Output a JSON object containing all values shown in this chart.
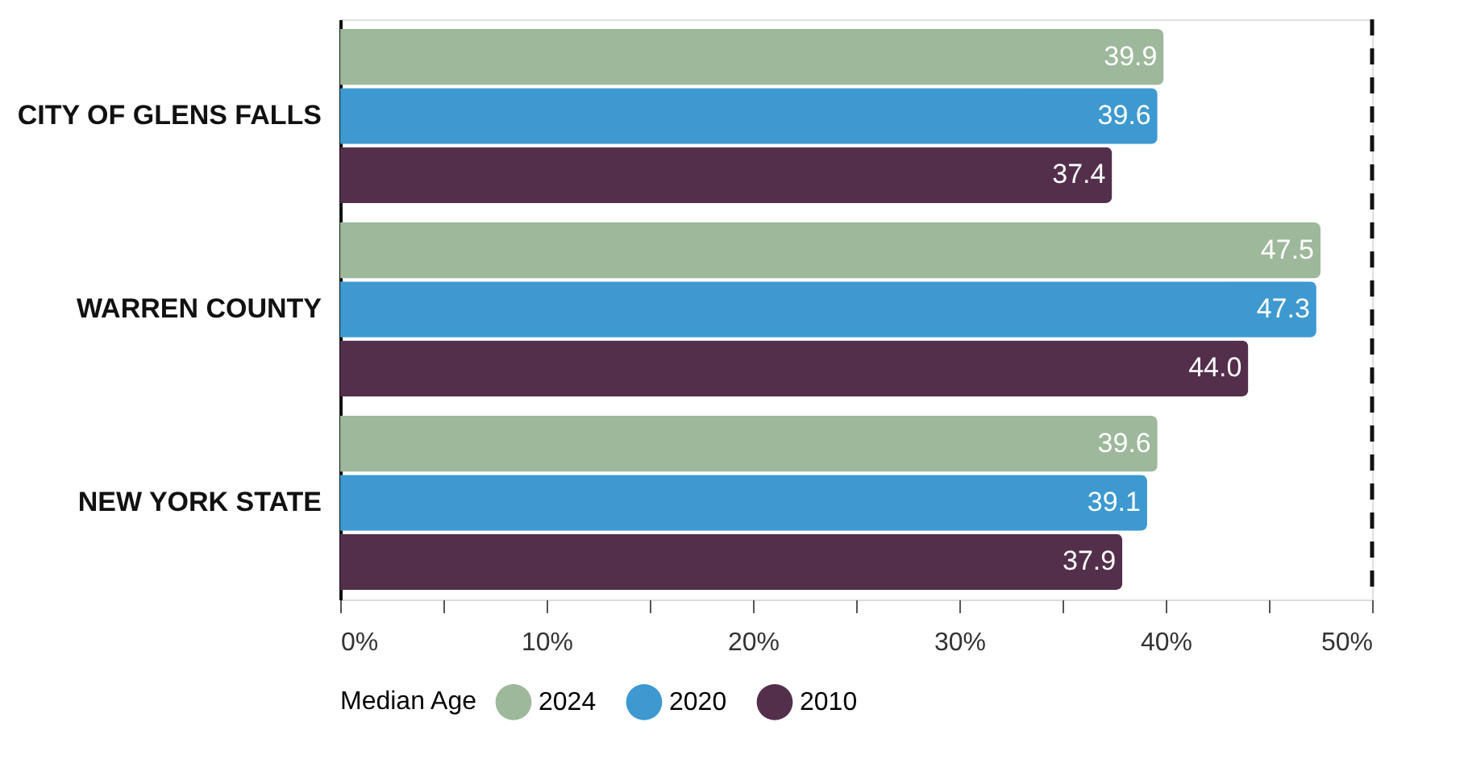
{
  "chart_data": {
    "type": "bar",
    "orientation": "horizontal",
    "categories": [
      "CITY OF GLENS FALLS",
      "WARREN COUNTY",
      "NEW YORK STATE"
    ],
    "series": [
      {
        "name": "2024",
        "color": "#9db89a",
        "values": [
          39.9,
          47.5,
          39.6
        ],
        "value_labels": [
          "39.9",
          "47.5",
          "39.6"
        ]
      },
      {
        "name": "2020",
        "color": "#3d99d0",
        "values": [
          39.6,
          47.3,
          39.1
        ],
        "value_labels": [
          "39.6",
          "47.3",
          "39.1"
        ]
      },
      {
        "name": "2010",
        "color": "#532f4c",
        "values": [
          37.4,
          44.0,
          37.9
        ],
        "value_labels": [
          "37.4",
          "44.0",
          "37.9"
        ]
      }
    ],
    "legend_title": "Median Age",
    "legend": "bottom",
    "grid": false,
    "xlim": [
      0,
      50
    ],
    "xticks": [
      {
        "value": 0,
        "label": "0%"
      },
      {
        "value": 5,
        "label": null
      },
      {
        "value": 10,
        "label": "10%"
      },
      {
        "value": 15,
        "label": null
      },
      {
        "value": 20,
        "label": "20%"
      },
      {
        "value": 25,
        "label": null
      },
      {
        "value": 30,
        "label": "30%"
      },
      {
        "value": 35,
        "label": null
      },
      {
        "value": 40,
        "label": "40%"
      },
      {
        "value": 45,
        "label": null
      },
      {
        "value": 50,
        "label": "50%"
      }
    ],
    "ref_lines": [
      {
        "axis": "x",
        "value": 50,
        "line_style": "dashed",
        "color": "#111111"
      }
    ]
  }
}
